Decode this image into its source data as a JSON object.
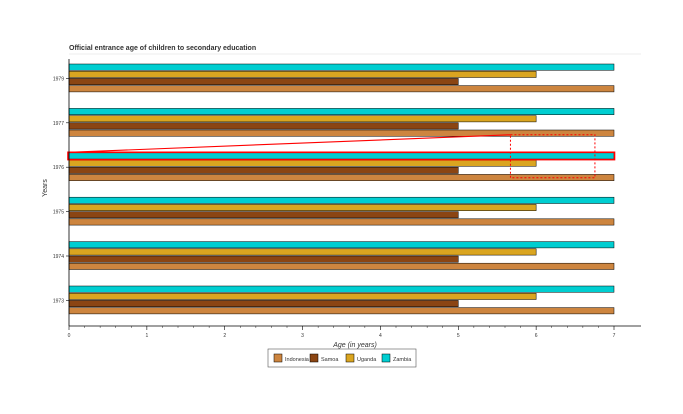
{
  "chart_data": {
    "type": "bar",
    "orientation": "horizontal",
    "title": "Official entrance age of children to secondary education",
    "xlabel": "Age (in years)",
    "ylabel": "Years",
    "xlim": [
      0,
      7
    ],
    "x_ticks": [
      "0",
      "1",
      "2",
      "3",
      "4",
      "5",
      "6",
      "7"
    ],
    "categories": [
      "1979",
      "1977",
      "1976",
      "1975",
      "1974",
      "1973"
    ],
    "series": [
      {
        "name": "Indonesia",
        "color": "#CD853F",
        "values": [
          7,
          7,
          7,
          7,
          7,
          7
        ]
      },
      {
        "name": "Samoa",
        "color": "#8B4513",
        "values": [
          5,
          5,
          5,
          5,
          5,
          5
        ]
      },
      {
        "name": "Uganda",
        "color": "#DAA520",
        "values": [
          6,
          6,
          6,
          6,
          6,
          6
        ]
      },
      {
        "name": "Zambia",
        "color": "#00CED1",
        "values": [
          7,
          7,
          7,
          7,
          7,
          7
        ]
      }
    ],
    "grid": false,
    "legend_position": "bottom",
    "highlight": {
      "category": "1976",
      "series": "Zambia",
      "color": "#FF0000"
    }
  }
}
